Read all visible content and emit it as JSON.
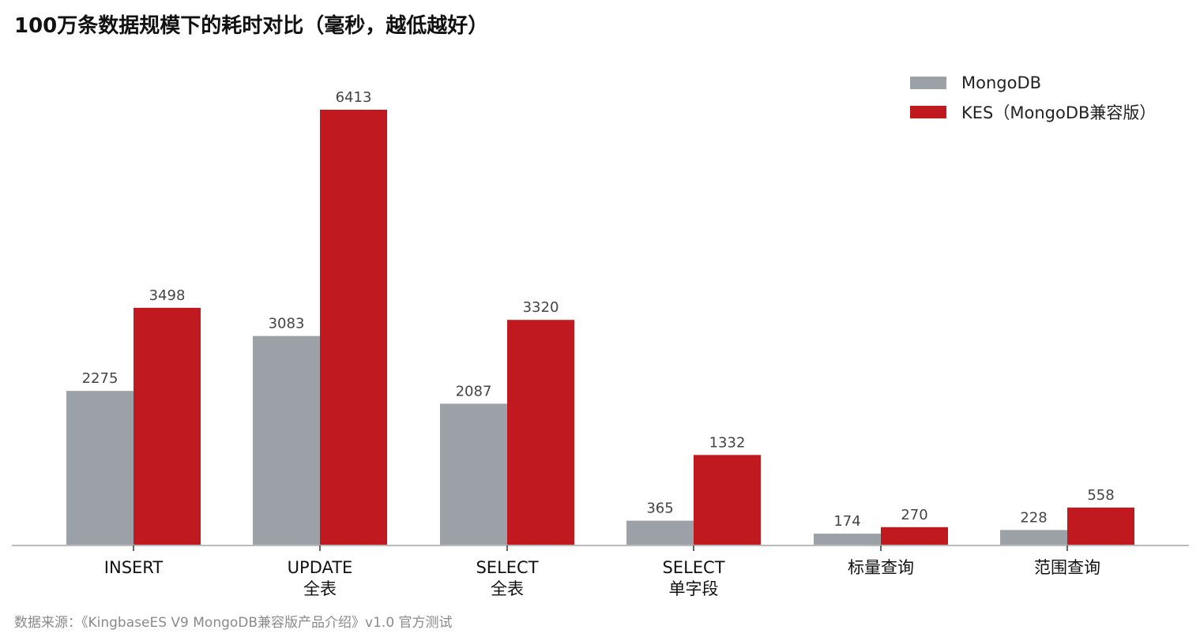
{
  "header": {
    "title": "100万条数据规模下的耗时对比（毫秒，越低越好）"
  },
  "footer": {
    "source": "数据来源：《KingbaseES V9 MongoDB兼容版产品介绍》v1.0 官方测试"
  },
  "colors": {
    "mongodb": "#9ca0a7",
    "kes": "#c0191f",
    "axis": "#bbbbbb"
  },
  "chart_data": {
    "type": "bar",
    "title": "100万条数据规模下的耗时对比（毫秒，越低越好）",
    "xlabel": "",
    "ylabel": "",
    "ylim": [
      0,
      6413
    ],
    "grid": false,
    "legend_position": "top-right",
    "categories": [
      [
        "INSERT"
      ],
      [
        "UPDATE",
        "全表"
      ],
      [
        "SELECT",
        "全表"
      ],
      [
        "SELECT",
        "单字段"
      ],
      [
        "标量查询"
      ],
      [
        "范围查询"
      ]
    ],
    "series": [
      {
        "name": "MongoDB",
        "color": "#9ca0a7",
        "values": [
          2275,
          3083,
          2087,
          365,
          174,
          228
        ]
      },
      {
        "name": "KES（MongoDB兼容版）",
        "color": "#c0191f",
        "values": [
          3498,
          6413,
          3320,
          1332,
          270,
          558
        ]
      }
    ]
  }
}
